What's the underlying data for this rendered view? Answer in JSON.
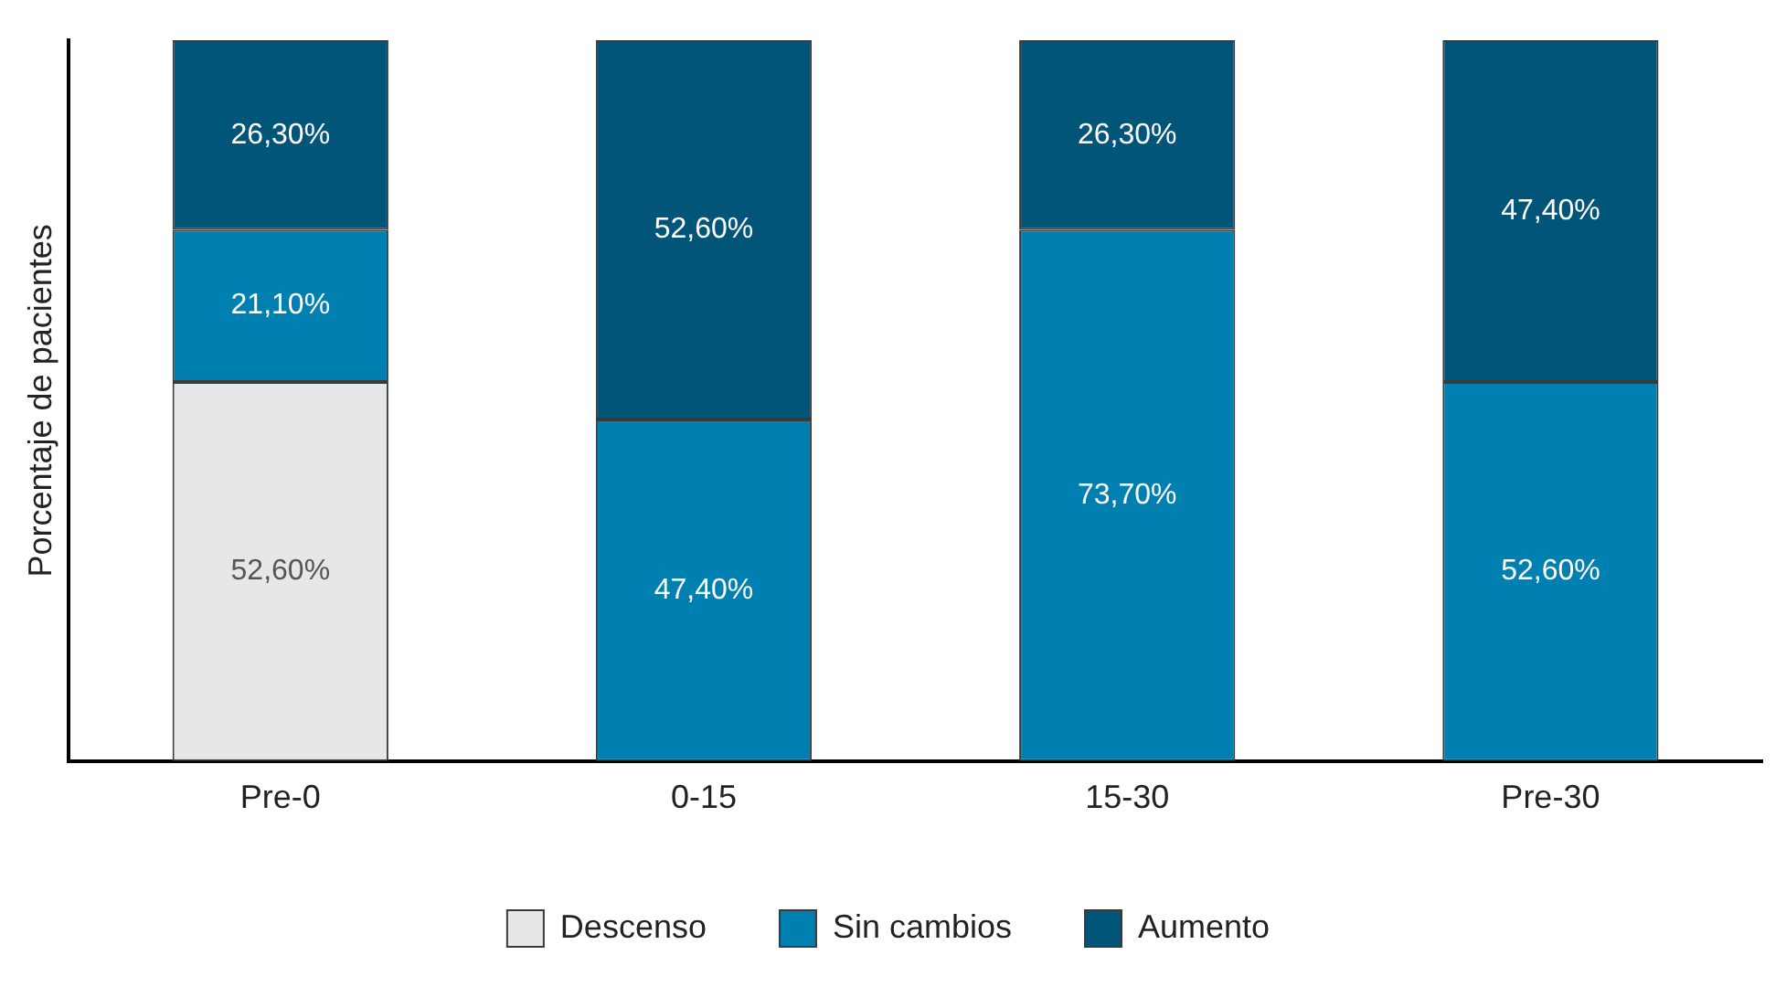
{
  "chart_data": {
    "type": "bar",
    "stacked": true,
    "ylabel": "Porcentaje de pacientes",
    "categories": [
      "Pre-0",
      "0-15",
      "15-30",
      "Pre-30"
    ],
    "ylim": [
      0,
      100
    ],
    "tick_labels": "x",
    "grid": false,
    "legend": "bottom",
    "series": [
      {
        "name": "Descenso",
        "color": "#e6e7e8",
        "values": [
          52.6,
          0,
          0,
          0
        ],
        "value_labels": [
          "52,60%",
          null,
          null,
          null
        ]
      },
      {
        "name": "Sin cambios",
        "color": "#0080b0",
        "values": [
          21.1,
          47.4,
          73.7,
          52.6
        ],
        "value_labels": [
          "21,10%",
          "47,40%",
          "73,70%",
          "52,60%"
        ]
      },
      {
        "name": "Aumento",
        "color": "#005578",
        "values": [
          26.3,
          52.6,
          26.3,
          47.4
        ],
        "value_labels": [
          "26,30%",
          "52,60%",
          "26,30%",
          "47,40%"
        ]
      }
    ]
  }
}
